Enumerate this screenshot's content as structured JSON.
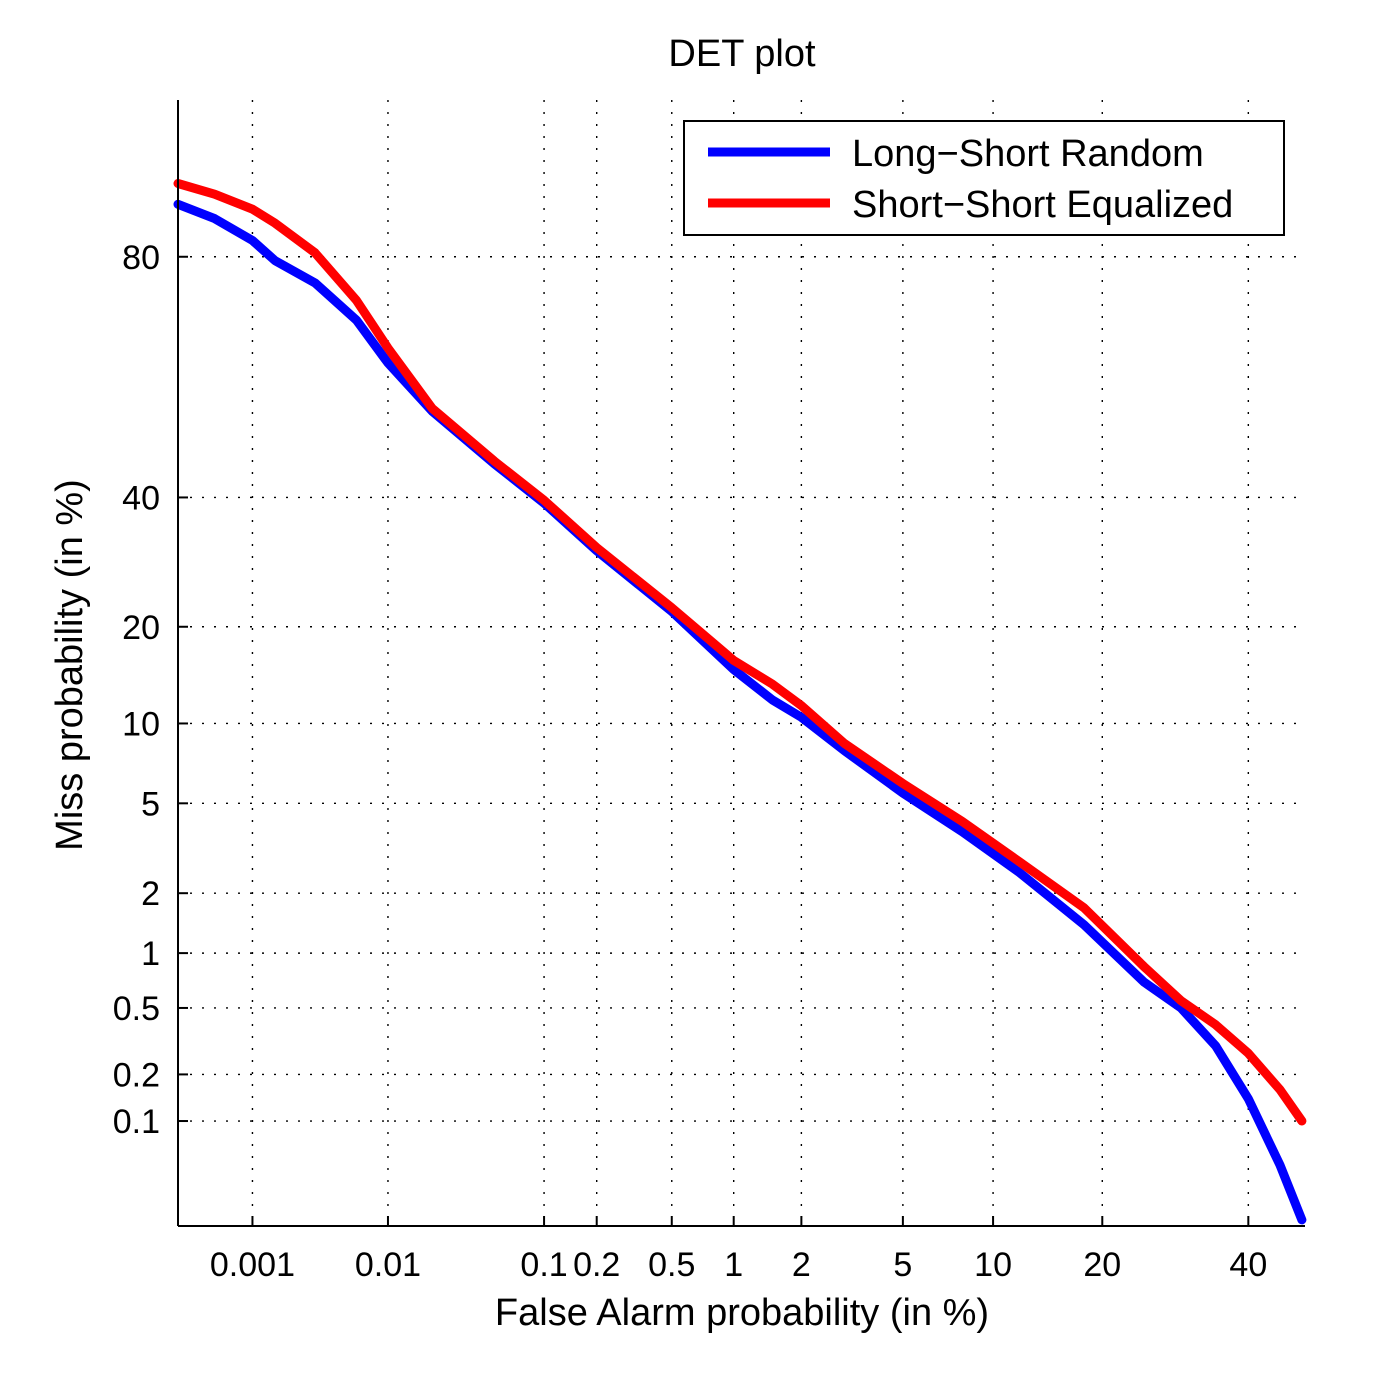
{
  "chart_data": {
    "type": "line",
    "title": "DET plot",
    "xlabel": "False Alarm probability (in %)",
    "ylabel": "Miss probability (in %)",
    "x_scale": "normal-deviate (probit)",
    "y_scale": "normal-deviate (probit)",
    "xlim": [
      0.00025,
      49
    ],
    "ylim": [
      0.018,
      94
    ],
    "grid": true,
    "legend_position": "top-right",
    "x_ticks": [
      {
        "value": 0.001,
        "label": "0.001"
      },
      {
        "value": 0.01,
        "label": "0.01"
      },
      {
        "value": 0.1,
        "label": "0.1"
      },
      {
        "value": 0.2,
        "label": "0.2"
      },
      {
        "value": 0.5,
        "label": "0.5"
      },
      {
        "value": 1,
        "label": "1"
      },
      {
        "value": 2,
        "label": "2"
      },
      {
        "value": 5,
        "label": "5"
      },
      {
        "value": 10,
        "label": "10"
      },
      {
        "value": 20,
        "label": "20"
      },
      {
        "value": 40,
        "label": "40"
      }
    ],
    "y_ticks": [
      {
        "value": 0.1,
        "label": "0.1"
      },
      {
        "value": 0.2,
        "label": "0.2"
      },
      {
        "value": 0.5,
        "label": "0.5"
      },
      {
        "value": 1,
        "label": "1"
      },
      {
        "value": 2,
        "label": "2"
      },
      {
        "value": 5,
        "label": "5"
      },
      {
        "value": 10,
        "label": "10"
      },
      {
        "value": 20,
        "label": "20"
      },
      {
        "value": 40,
        "label": "40"
      },
      {
        "value": 80,
        "label": "80"
      }
    ],
    "series": [
      {
        "name": "Long−Short Random",
        "color": "#0000ff",
        "x": [
          0.00025,
          0.0005,
          0.001,
          0.0015,
          0.003,
          0.006,
          0.01,
          0.02,
          0.05,
          0.1,
          0.2,
          0.5,
          1,
          1.5,
          2,
          3,
          5,
          8,
          12,
          18,
          25,
          30,
          35,
          40,
          45,
          48.5
        ],
        "y": [
          86,
          84.5,
          82,
          79.5,
          76.5,
          71,
          64,
          55.5,
          46,
          39,
          31,
          22,
          15,
          12,
          10.5,
          8,
          5.5,
          3.8,
          2.5,
          1.4,
          0.7,
          0.5,
          0.3,
          0.14,
          0.05,
          0.02
        ]
      },
      {
        "name": "Short−Short Equalized",
        "color": "#ff0000",
        "x": [
          0.00025,
          0.0005,
          0.001,
          0.0015,
          0.003,
          0.006,
          0.01,
          0.02,
          0.05,
          0.1,
          0.2,
          0.5,
          1,
          1.5,
          2,
          3,
          5,
          8,
          12,
          18,
          25,
          30,
          35,
          40,
          45,
          48.5
        ],
        "y": [
          88,
          87,
          85.5,
          84,
          80.5,
          74,
          66.5,
          56,
          46.5,
          39.5,
          31.5,
          22.5,
          16,
          13.5,
          11.5,
          8.5,
          6,
          4.2,
          2.8,
          1.7,
          0.85,
          0.55,
          0.4,
          0.27,
          0.16,
          0.1
        ]
      }
    ]
  }
}
